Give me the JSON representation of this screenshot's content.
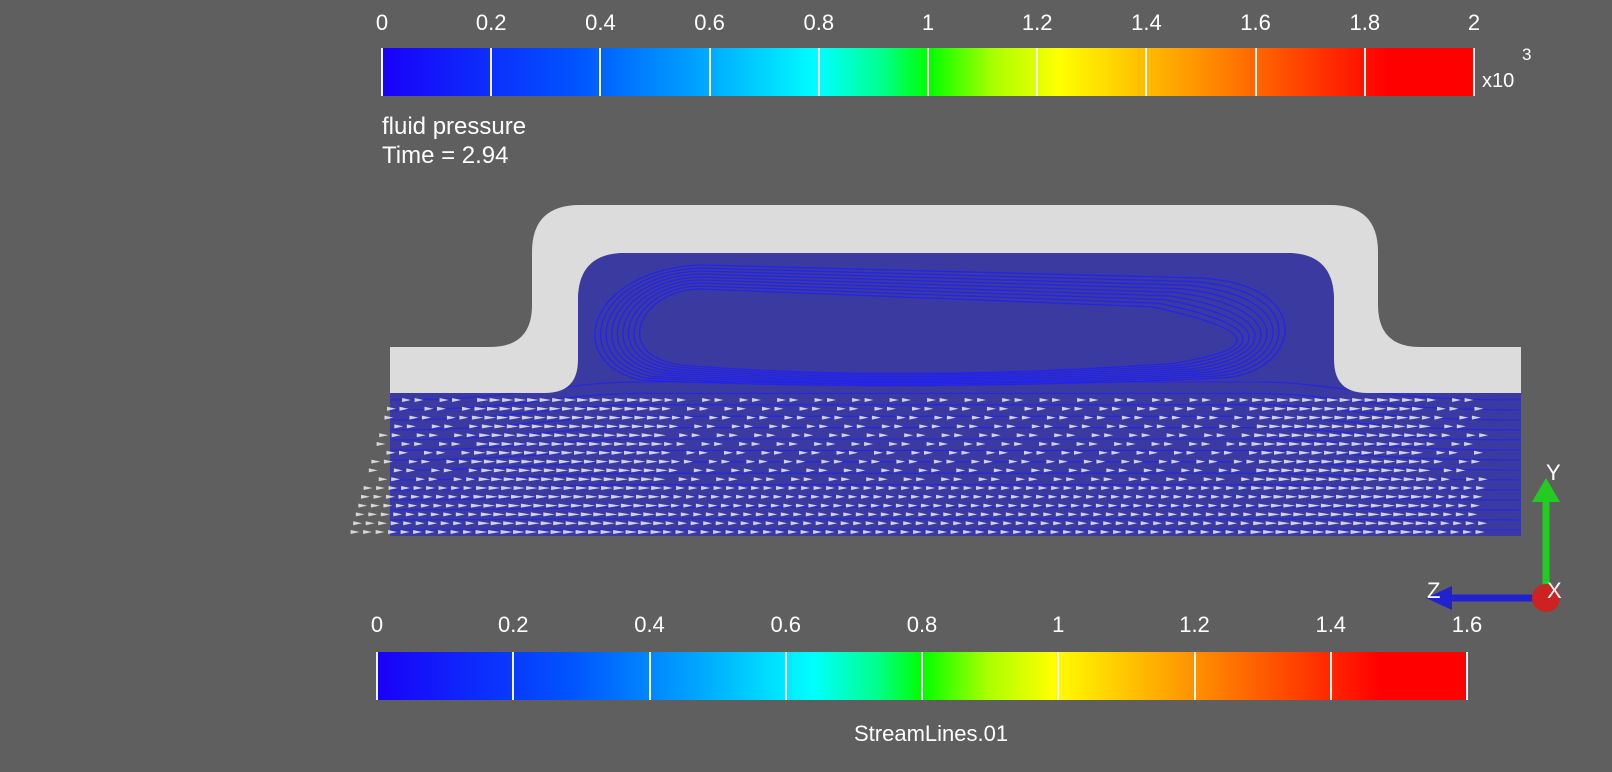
{
  "top_legend": {
    "ticks": [
      "0",
      "0.2",
      "0.4",
      "0.6",
      "0.8",
      "1",
      "1.2",
      "1.4",
      "1.6",
      "1.8",
      "2"
    ],
    "multiplier_base": "x10",
    "multiplier_exponent": "3",
    "title": "fluid pressure",
    "time_text": "Time = 2.94"
  },
  "bottom_legend": {
    "ticks": [
      "0",
      "0.2",
      "0.4",
      "0.6",
      "0.8",
      "1",
      "1.2",
      "1.4",
      "1.6"
    ],
    "title": "StreamLines.01"
  },
  "axes": {
    "y": "Y",
    "z": "Z",
    "x": "X"
  },
  "colors": {
    "background": "#5f5f5f",
    "wall": "#dcdcdc",
    "fluid": "#3a3aa0",
    "streamline": "#2222ee",
    "glyph": "#ececec",
    "y_axis": "#22cc22",
    "z_axis": "#2222cc",
    "x_axis": "#cc2222"
  }
}
